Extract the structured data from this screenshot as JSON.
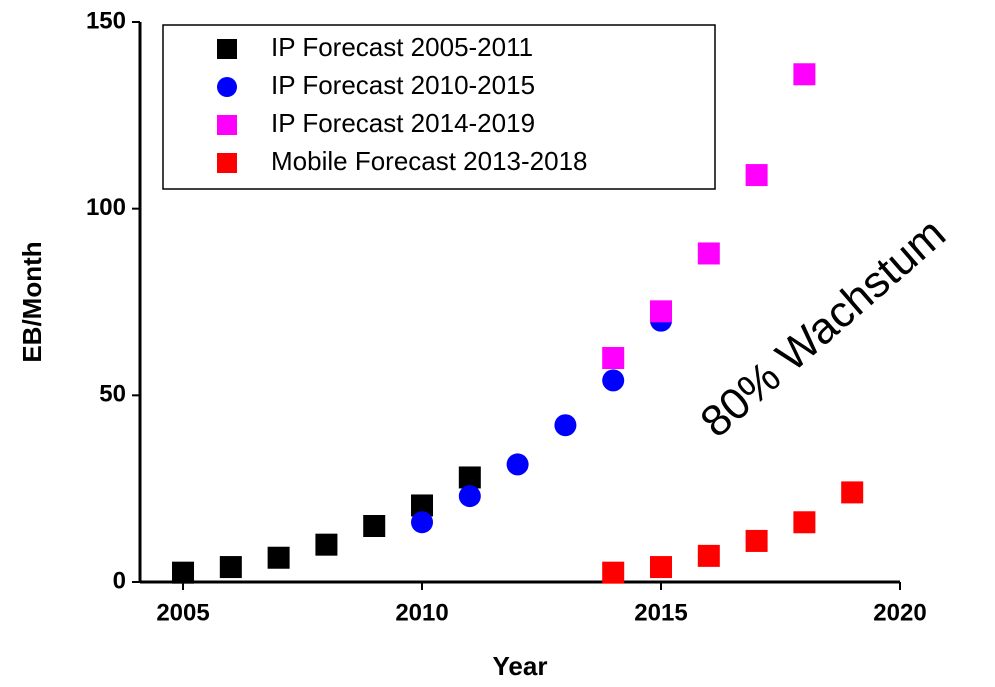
{
  "chart_data": {
    "type": "scatter",
    "x_label": "Year",
    "y_label": "EB/Month",
    "annotation": "80% Wachstum",
    "xlim": [
      2004.1,
      2020
    ],
    "ylim": [
      0,
      150
    ],
    "xticks": [
      2005,
      2010,
      2015,
      2020
    ],
    "yticks": [
      0,
      50,
      100,
      150
    ],
    "legend": "upper left",
    "series": [
      {
        "name": "IP Forecast 2005-2011",
        "color": "#000000",
        "marker": "square",
        "x": [
          2005,
          2006,
          2007,
          2008,
          2009,
          2010,
          2011
        ],
        "values": [
          2.5,
          4,
          6.5,
          10,
          15,
          20.5,
          28
        ]
      },
      {
        "name": "IP Forecast 2010-2015",
        "color": "#0000ff",
        "marker": "circle",
        "x": [
          2010,
          2011,
          2012,
          2013,
          2014,
          2015
        ],
        "values": [
          16,
          23,
          31.5,
          42,
          54,
          70
        ]
      },
      {
        "name": "IP Forecast 2014-2019",
        "color": "#ff00ff",
        "marker": "square",
        "x": [
          2014,
          2015,
          2016,
          2017,
          2018
        ],
        "values": [
          60,
          72.5,
          88,
          109,
          136
        ]
      },
      {
        "name": "Mobile Forecast 2013-2018",
        "color": "#ff0000",
        "marker": "square",
        "x": [
          2014,
          2015,
          2016,
          2017,
          2018,
          2019
        ],
        "values": [
          2.5,
          4,
          7,
          11,
          16,
          24
        ]
      }
    ]
  }
}
